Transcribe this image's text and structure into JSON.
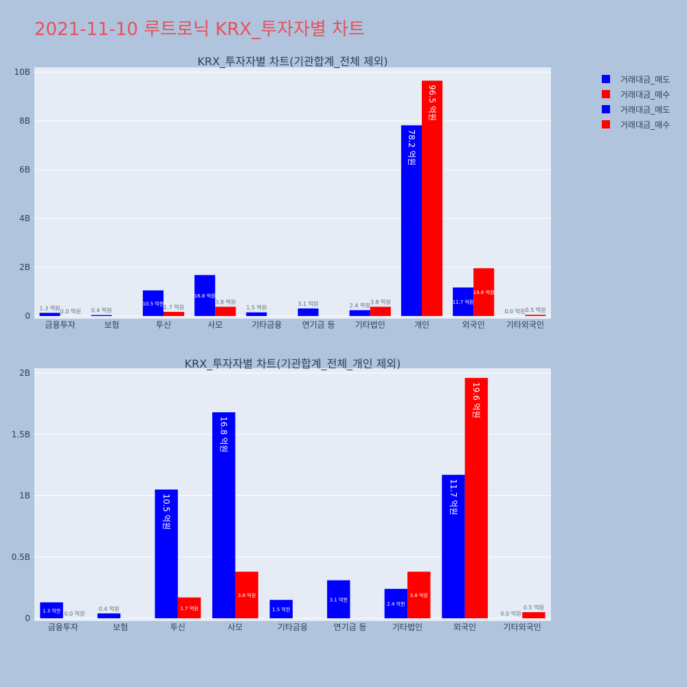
{
  "page": {
    "title": "2021-11-10 루트로닉 KRX_투자자별 차트"
  },
  "colors": {
    "sell": "#0000ff",
    "buy": "#ff0000",
    "plot_bg": "#e5ecf6",
    "paper": "#b0c4de",
    "text": "#2a3f5f"
  },
  "legend": [
    {
      "label": "거래대금_매도",
      "color": "#0000ff"
    },
    {
      "label": "거래대금_매수",
      "color": "#ff0000"
    },
    {
      "label": "거래대금_매도",
      "color": "#0000ff"
    },
    {
      "label": "거래대금_매수",
      "color": "#ff0000"
    }
  ],
  "chart_data": [
    {
      "type": "bar",
      "title": "KRX_투자자별 차트(기관합계_전체 제외)",
      "categories": [
        "금융투자",
        "보험",
        "투신",
        "사모",
        "기타금융",
        "연기금 등",
        "기타법인",
        "개인",
        "외국인",
        "기타외국인"
      ],
      "ylim": [
        0,
        10000000000
      ],
      "yticks": [
        0,
        2000000000,
        4000000000,
        6000000000,
        8000000000,
        10000000000
      ],
      "ytick_labels": [
        "0",
        "2B",
        "4B",
        "6B",
        "8B",
        "10B"
      ],
      "series": [
        {
          "name": "거래대금_매도",
          "color": "#0000ff",
          "values": [
            130000000,
            40000000,
            1050000000,
            1680000000,
            150000000,
            310000000,
            240000000,
            7820000000,
            1170000000,
            0
          ],
          "labels": [
            "1.3 억원",
            "0.4 억원",
            "10.5 억원",
            "16.8 억원",
            "1.5 억원",
            "3.1 억원",
            "2.4 억원",
            "78.2 억원",
            "11.7 억원",
            "0.0 억원"
          ]
        },
        {
          "name": "거래대금_매수",
          "color": "#ff0000",
          "values": [
            0,
            0,
            170000000,
            380000000,
            0,
            0,
            380000000,
            9650000000,
            1960000000,
            50000000
          ],
          "labels": [
            "0.0 억원",
            "",
            "1.7 억원",
            "3.8 억원",
            "",
            "",
            "3.8 억원",
            "96.5 억원",
            "19.6 억원",
            "0.5 억원"
          ]
        }
      ],
      "grid": true,
      "legend_position": "top-right"
    },
    {
      "type": "bar",
      "title": "KRX_투자자별 차트(기관합계_전체_개인 제외)",
      "categories": [
        "금융투자",
        "보험",
        "투신",
        "사모",
        "기타금융",
        "연기금 등",
        "기타법인",
        "외국인",
        "기타외국인"
      ],
      "ylim": [
        0,
        2000000000
      ],
      "yticks": [
        0,
        500000000,
        1000000000,
        1500000000,
        2000000000
      ],
      "ytick_labels": [
        "0",
        "0.5B",
        "1B",
        "1.5B",
        "2B"
      ],
      "series": [
        {
          "name": "거래대금_매도",
          "color": "#0000ff",
          "values": [
            130000000,
            40000000,
            1050000000,
            1680000000,
            150000000,
            310000000,
            240000000,
            1170000000,
            0
          ],
          "labels": [
            "1.3 억원",
            "0.4 억원",
            "10.5 억원",
            "16.8 억원",
            "1.5 억원",
            "3.1 억원",
            "2.4 억원",
            "11.7 억원",
            "0.0 억원"
          ]
        },
        {
          "name": "거래대금_매수",
          "color": "#ff0000",
          "values": [
            0,
            0,
            170000000,
            380000000,
            0,
            0,
            380000000,
            1960000000,
            50000000
          ],
          "labels": [
            "0.0 억원",
            "",
            "1.7 억원",
            "3.8 억원",
            "",
            "",
            "3.8 억원",
            "19.6 억원",
            "0.5 억원"
          ]
        }
      ],
      "grid": true,
      "legend_position": "top-right"
    }
  ]
}
